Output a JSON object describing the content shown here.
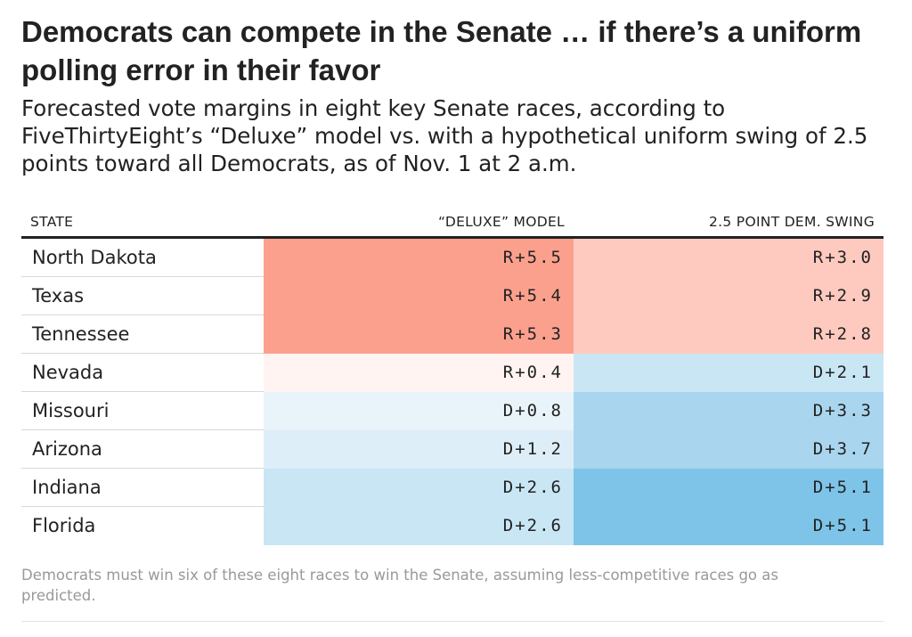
{
  "header": {
    "title": "Democrats can compete in the Senate … if there’s a uniform polling error in their favor",
    "subtitle": "Forecasted vote margins in eight key Senate races, according to FiveThirtyEight’s “Deluxe” model vs. with a hypothetical uniform swing of 2.5 points toward all Democrats, as of Nov. 1 at 2 a.m."
  },
  "chart_data": {
    "type": "table",
    "columns": [
      "STATE",
      "“DELUXE” MODEL",
      "2.5 POINT DEM. SWING"
    ],
    "rows": [
      {
        "state": "North Dakota",
        "deluxe": "R+5.5",
        "swing": "R+3.0",
        "deluxe_value": -5.5,
        "swing_value": -3.0
      },
      {
        "state": "Texas",
        "deluxe": "R+5.4",
        "swing": "R+2.9",
        "deluxe_value": -5.4,
        "swing_value": -2.9
      },
      {
        "state": "Tennessee",
        "deluxe": "R+5.3",
        "swing": "R+2.8",
        "deluxe_value": -5.3,
        "swing_value": -2.8
      },
      {
        "state": "Nevada",
        "deluxe": "R+0.4",
        "swing": "D+2.1",
        "deluxe_value": -0.4,
        "swing_value": 2.1
      },
      {
        "state": "Missouri",
        "deluxe": "D+0.8",
        "swing": "D+3.3",
        "deluxe_value": 0.8,
        "swing_value": 3.3
      },
      {
        "state": "Arizona",
        "deluxe": "D+1.2",
        "swing": "D+3.7",
        "deluxe_value": 1.2,
        "swing_value": 3.7
      },
      {
        "state": "Indiana",
        "deluxe": "D+2.6",
        "swing": "D+5.1",
        "deluxe_value": 2.6,
        "swing_value": 5.1
      },
      {
        "state": "Florida",
        "deluxe": "D+2.6",
        "swing": "D+5.1",
        "deluxe_value": 2.6,
        "swing_value": 5.1
      }
    ],
    "color_scale": {
      "rep_strong": "#fca08e",
      "rep_medium": "#fecac0",
      "rep_light": "#fff4f1",
      "dem_light": "#e9f3fa",
      "dem_soft": "#ddeef8",
      "dem_medium_light": "#c9e6f5",
      "dem_medium": "#a9d6ee",
      "dem_strong": "#7ec4e8"
    }
  },
  "footnote": "Democrats must win six of these eight races to win the Senate, assuming less-competitive races go as predicted."
}
